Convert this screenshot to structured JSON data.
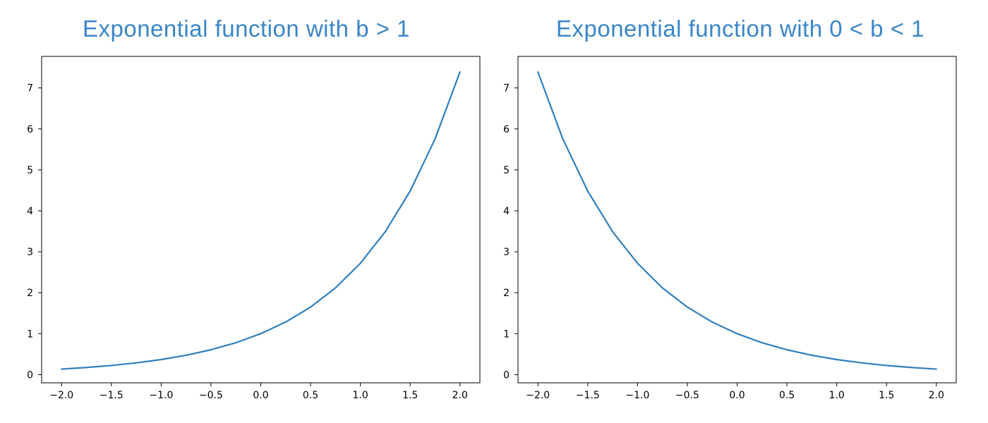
{
  "colors": {
    "title": "#3a86c8",
    "line": "#2f7fbf",
    "axis": "#000000"
  },
  "chart_data": [
    {
      "type": "line",
      "title": "Exponential function with b > 1",
      "xlabel": "",
      "ylabel": "",
      "xlim": [
        -2.2,
        2.2
      ],
      "ylim": [
        -0.2,
        7.77
      ],
      "xticks": [
        -2.0,
        -1.5,
        -1.0,
        -0.5,
        0.0,
        0.5,
        1.0,
        1.5,
        2.0
      ],
      "xtick_labels": [
        "−2.0",
        "−1.5",
        "−1.0",
        "−0.5",
        "0.0",
        "0.5",
        "1.0",
        "1.5",
        "2.0"
      ],
      "yticks": [
        0,
        1,
        2,
        3,
        4,
        5,
        6,
        7
      ],
      "ytick_labels": [
        "0",
        "1",
        "2",
        "3",
        "4",
        "5",
        "6",
        "7"
      ],
      "grid": false,
      "series": [
        {
          "x": [
            -2.0,
            -1.75,
            -1.5,
            -1.25,
            -1.0,
            -0.75,
            -0.5,
            -0.25,
            0.0,
            0.25,
            0.5,
            0.75,
            1.0,
            1.25,
            1.5,
            1.75,
            2.0
          ],
          "y": [
            0.135,
            0.174,
            0.223,
            0.287,
            0.368,
            0.472,
            0.607,
            0.779,
            1.0,
            1.284,
            1.649,
            2.117,
            2.718,
            3.49,
            4.482,
            5.755,
            7.389
          ]
        }
      ]
    },
    {
      "type": "line",
      "title": "Exponential function with 0 < b < 1",
      "xlabel": "",
      "ylabel": "",
      "xlim": [
        -2.2,
        2.2
      ],
      "ylim": [
        -0.2,
        7.77
      ],
      "xticks": [
        -2.0,
        -1.5,
        -1.0,
        -0.5,
        0.0,
        0.5,
        1.0,
        1.5,
        2.0
      ],
      "xtick_labels": [
        "−2.0",
        "−1.5",
        "−1.0",
        "−0.5",
        "0.0",
        "0.5",
        "1.0",
        "1.5",
        "2.0"
      ],
      "yticks": [
        0,
        1,
        2,
        3,
        4,
        5,
        6,
        7
      ],
      "ytick_labels": [
        "0",
        "1",
        "2",
        "3",
        "4",
        "5",
        "6",
        "7"
      ],
      "grid": false,
      "series": [
        {
          "x": [
            -2.0,
            -1.75,
            -1.5,
            -1.25,
            -1.0,
            -0.75,
            -0.5,
            -0.25,
            0.0,
            0.25,
            0.5,
            0.75,
            1.0,
            1.25,
            1.5,
            1.75,
            2.0
          ],
          "y": [
            7.389,
            5.755,
            4.482,
            3.49,
            2.718,
            2.117,
            1.649,
            1.284,
            1.0,
            0.779,
            0.607,
            0.472,
            0.368,
            0.287,
            0.223,
            0.174,
            0.135
          ]
        }
      ]
    }
  ]
}
